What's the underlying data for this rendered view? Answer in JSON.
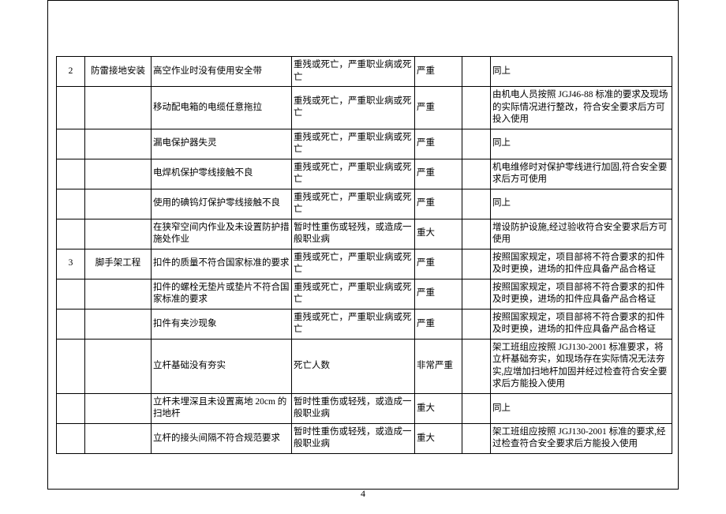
{
  "pageNumber": "4",
  "rows": [
    {
      "c1": "2",
      "c2": "防雷接地安装",
      "c3": "高空作业时没有使用安全带",
      "c4": "重残或死亡，严重职业病或死亡",
      "c5": "严重",
      "c7": "同上"
    },
    {
      "c1": "",
      "c2": "",
      "c3": "移动配电箱的电缆任意拖拉",
      "c4": "重残或死亡，严重职业病或死亡",
      "c5": "严重",
      "c7": "由机电人员按照 JGJ46-88 标准的要求及现场的实际情况进行整改，符合安全要求后方可投入使用"
    },
    {
      "c1": "",
      "c2": "",
      "c3": "漏电保护器失灵",
      "c4": "重残或死亡，严重职业病或死亡",
      "c5": "严重",
      "c7": "同上"
    },
    {
      "c1": "",
      "c2": "",
      "c3": "电焊机保护零线接触不良",
      "c4": "重残或死亡，严重职业病或死亡",
      "c5": "严重",
      "c7": "机电维修时对保护零线进行加固,符合安全要求后方可使用"
    },
    {
      "c1": "",
      "c2": "",
      "c3": "使用的碘钨灯保护零线接触不良",
      "c4": "重残或死亡，严重职业病或死亡",
      "c5": "严重",
      "c7": "同上"
    },
    {
      "c1": "",
      "c2": "",
      "c3": "在狭窄空间内作业及未设置防护措施处作业",
      "c4": "暂时性重伤或轻残，或造成一般职业病",
      "c5": "重大",
      "c7": "增设防护设施,经过验收符合安全要求后方可使用"
    },
    {
      "c1": "3",
      "c2": "脚手架工程",
      "c3": "扣件的质量不符合国家标准的要求",
      "c4": "重残或死亡，严重职业病或死亡",
      "c5": "严重",
      "c7": "按照国家规定，项目部将不符合要求的扣件及时更换，进场的扣件应具备产品合格证"
    },
    {
      "c1": "",
      "c2": "",
      "c3": "扣件的螺栓无垫片或垫片不符合国家标准的要求",
      "c4": "重残或死亡，严重职业病或死亡",
      "c5": "严重",
      "c7": "按照国家规定，项目部将不符合要求的扣件及时更换，进场的扣件应具备产品合格证"
    },
    {
      "c1": "",
      "c2": "",
      "c3": "扣件有夹沙现象",
      "c4": "重残或死亡，严重职业病或死亡",
      "c5": "严重",
      "c7": "按照国家规定，项目部将不符合要求的扣件及时更换，进场的扣件应具备产品合格证"
    },
    {
      "c1": "",
      "c2": "",
      "c3": "立杆基础没有夯实",
      "c4": "死亡人数",
      "c5": "非常严重",
      "c7": "架工班组应按照 JGJ130-2001 标准要求，将立杆基础夯实，如现场存在实际情况无法夯实,应增加扫地杆加固并经过检查符合安全要求后方能投入使用"
    },
    {
      "c1": "",
      "c2": "",
      "c3": "立杆未埋深且未设置离地 20cm 的扫地杆",
      "c4": "暂时性重伤或轻残，或造成一般职业病",
      "c5": "重大",
      "c7": "同上"
    },
    {
      "c1": "",
      "c2": "",
      "c3": "立杆的接头间隔不符合规范要求",
      "c4": "暂时性重伤或轻残，或造成一般职业病",
      "c5": "重大",
      "c7": "架工班组应按照 JGJ130-2001 标准的要求,经过检查符合安全要求后方能投入使用"
    }
  ]
}
